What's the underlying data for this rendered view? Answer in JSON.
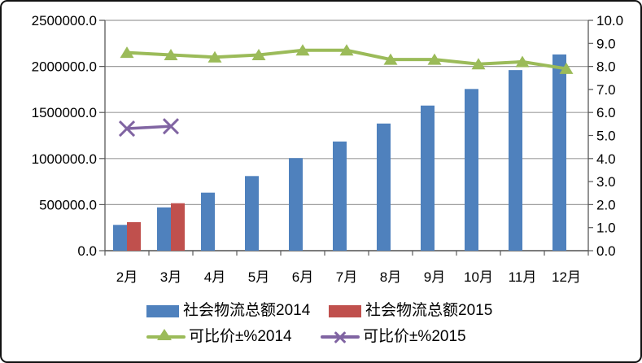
{
  "chart_data": {
    "type": "combo-bar-line",
    "title": "",
    "categories": [
      "2月",
      "3月",
      "4月",
      "5月",
      "6月",
      "7月",
      "8月",
      "9月",
      "10月",
      "11月",
      "12月"
    ],
    "series": [
      {
        "name": "社会物流总额2014",
        "type": "bar",
        "axis": "left",
        "color": "#4F81BD",
        "values": [
          280000,
          470000,
          630000,
          810000,
          1005000,
          1185000,
          1380000,
          1575000,
          1755000,
          1960000,
          2130000
        ]
      },
      {
        "name": "社会物流总额2015",
        "type": "bar",
        "axis": "left",
        "color": "#C0504D",
        "values": [
          310000,
          515000,
          null,
          null,
          null,
          null,
          null,
          null,
          null,
          null,
          null
        ]
      },
      {
        "name": "可比价±%2014",
        "type": "line",
        "marker": "triangle",
        "axis": "right",
        "color": "#9BBB59",
        "values": [
          8.6,
          8.5,
          8.4,
          8.5,
          8.7,
          8.7,
          8.3,
          8.3,
          8.1,
          8.2,
          7.9
        ]
      },
      {
        "name": "可比价±%2015",
        "type": "line",
        "marker": "x",
        "axis": "right",
        "color": "#8064A2",
        "values": [
          5.3,
          5.4,
          null,
          null,
          null,
          null,
          null,
          null,
          null,
          null,
          null
        ]
      }
    ],
    "left_axis": {
      "min": 0,
      "max": 2500000,
      "step": 500000,
      "labels": [
        "2500000.0",
        "2000000.0",
        "1500000.0",
        "1000000.0",
        "500000.0",
        "0.0"
      ]
    },
    "right_axis": {
      "min": 0,
      "max": 10,
      "step": 1,
      "labels": [
        "10.0",
        "9.0",
        "8.0",
        "7.0",
        "6.0",
        "5.0",
        "4.0",
        "3.0",
        "2.0",
        "1.0",
        "0.0"
      ]
    },
    "grid": true,
    "legend_position": "bottom",
    "colors": {
      "grid": "#9e9e9e",
      "axis": "#595959",
      "text": "#000000"
    }
  }
}
